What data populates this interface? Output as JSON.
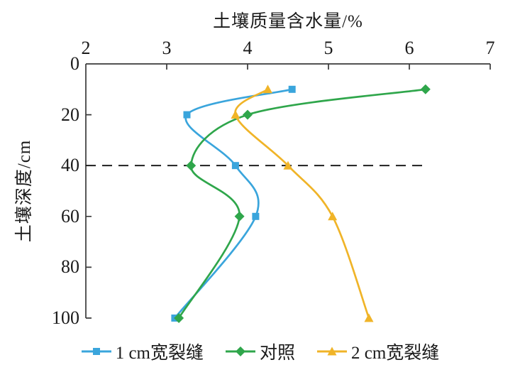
{
  "chart_data": {
    "type": "line",
    "title": "",
    "xlabel": "土壤质量含水量/%",
    "ylabel": "土壤深度/cm",
    "xlim": [
      2,
      7
    ],
    "ylim": [
      0,
      100
    ],
    "xticks": [
      2,
      3,
      4,
      5,
      6,
      7
    ],
    "yticks": [
      0,
      20,
      40,
      60,
      80,
      100
    ],
    "y_axis_inverted": true,
    "grid": false,
    "legend_position": "bottom",
    "axis_color": "#3a3a3a",
    "reference_line": {
      "depth": 40,
      "style": "dashed",
      "color": "#111111",
      "x_start": 2,
      "x_end": 6.2
    },
    "depths_cm": [
      10,
      20,
      40,
      60,
      100
    ],
    "series": [
      {
        "name": "1 cm宽裂缝",
        "color": "#3AA5DC",
        "marker": "square",
        "moisture_percent": [
          4.55,
          3.25,
          3.85,
          4.1,
          3.1
        ]
      },
      {
        "name": "对照",
        "color": "#2FA64B",
        "marker": "diamond",
        "moisture_percent": [
          6.2,
          4.0,
          3.3,
          3.9,
          3.15
        ]
      },
      {
        "name": "2 cm宽裂缝",
        "color": "#F0B428",
        "marker": "triangle",
        "moisture_percent": [
          4.25,
          3.85,
          4.5,
          5.05,
          5.5
        ]
      }
    ]
  }
}
